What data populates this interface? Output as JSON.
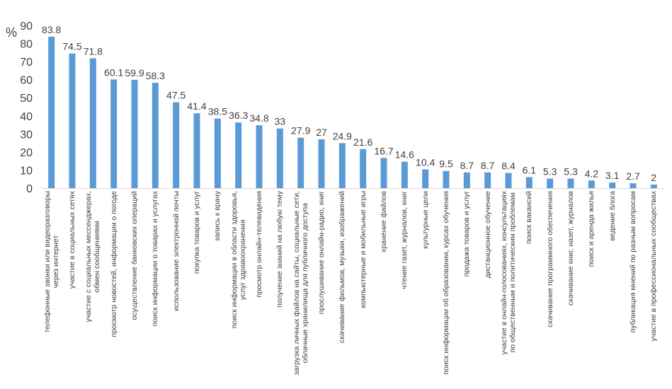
{
  "chart_data": {
    "type": "bar",
    "ylabel": "%",
    "ylim": [
      0,
      90
    ],
    "yticks": [
      0,
      10,
      20,
      30,
      40,
      50,
      60,
      70,
      80,
      90
    ],
    "grid": false,
    "bar_color": "#5B9BD5",
    "categories": [
      "телефонные звонки или видеоразговоры\nчерез интернет",
      "участие в социальных сетях",
      "участие с социальных мессенджерах,\nобмен сообщениями",
      "просмотр новостей, информации о погоде",
      "осуществление банковских операций",
      "поиск информации о товарах и услугах",
      "использование электронной почты",
      "покупка товаров и услуг",
      "запись к врачу",
      "поиск информации в области здоровья,\nуслуг здравоохранения",
      "просмотр онлайн-телевидения",
      "получение знаний на любую тему",
      "загрузка личных файлов на сайты, социальные сети,\nоблачные хранилища для публичного доступа",
      "прослушивание онлайн-радио, книг",
      "скачивание фильмов, музыки, изображений",
      "компьютерные и мобильные игры",
      "хранение файлов",
      "чтение газет, журналов, книг",
      "культурные цели",
      "поиск информации об образовании, курсах обучения",
      "продажа товаров и услуг",
      "дистанционное обучение",
      "участие в онлайн-голосованиях, консультациях\nпо общественным и политическим проблемам",
      "поиск вакансий",
      "скачивание программного обеспечения",
      "скачивание книг, назет, журналов",
      "поиск и аренда жилья",
      "ведение блога",
      "публикация мнений по разным вопросам",
      "участие в профессиональных сообществах"
    ],
    "values": [
      83.8,
      74.5,
      71.8,
      60.1,
      59.9,
      58.3,
      47.5,
      41.4,
      38.5,
      36.3,
      34.8,
      33,
      27.9,
      27,
      24.9,
      21.6,
      16.7,
      14.6,
      10.4,
      9.5,
      8.7,
      8.7,
      8.4,
      6.1,
      5.3,
      5.3,
      4.2,
      3.1,
      2.7,
      2
    ]
  }
}
